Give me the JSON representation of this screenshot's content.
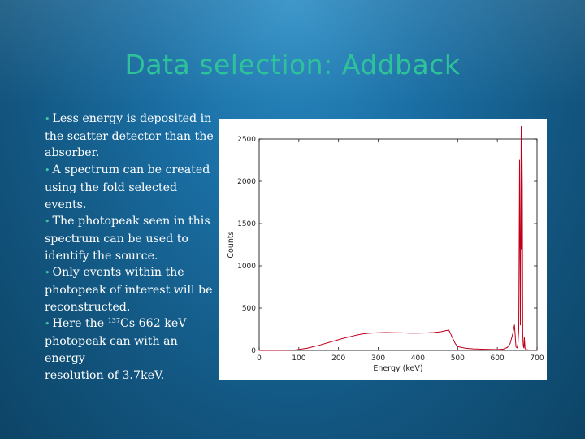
{
  "slide": {
    "title": "Data selection: Addback",
    "bullets": [
      {
        "lines": [
          "Less energy is deposited in",
          "the scatter detector than the",
          "absorber."
        ]
      },
      {
        "lines": [
          "A spectrum can be created",
          "using the fold selected events."
        ]
      },
      {
        "lines": [
          "The photopeak seen in this",
          "spectrum can be used to",
          "identify the source."
        ]
      },
      {
        "lines": [
          "Only events within the",
          "photopeak of interest will be",
          "reconstructed."
        ]
      },
      {
        "pre": "Here the ",
        "sup": "137",
        "post": "Cs 662 keV",
        "lines": [
          "photopeak can with an energy",
          "resolution of 3.7keV."
        ]
      }
    ]
  },
  "chart_data": {
    "type": "line",
    "title": "",
    "xlabel": "Energy (keV)",
    "ylabel": "Counts",
    "xlim": [
      0,
      700
    ],
    "ylim": [
      0,
      2500
    ],
    "xticks": [
      0,
      100,
      200,
      300,
      400,
      500,
      600,
      700
    ],
    "yticks": [
      0,
      500,
      1000,
      1500,
      2000,
      2500
    ],
    "series": [
      {
        "color": "#c0001a",
        "x": [
          0,
          50,
          90,
          120,
          150,
          180,
          210,
          240,
          260,
          280,
          300,
          320,
          340,
          360,
          380,
          400,
          420,
          440,
          460,
          470,
          478,
          482,
          486,
          490,
          494,
          500,
          520,
          540,
          560,
          580,
          600,
          615,
          625,
          632,
          638,
          643,
          647,
          650,
          652,
          654,
          656,
          658,
          660,
          661,
          662,
          663,
          664,
          665,
          666,
          667,
          668,
          670,
          673,
          680,
          700
        ],
        "y": [
          0,
          0,
          5,
          25,
          60,
          100,
          140,
          175,
          195,
          205,
          210,
          212,
          210,
          208,
          205,
          205,
          207,
          212,
          222,
          235,
          240,
          200,
          160,
          120,
          80,
          45,
          25,
          18,
          14,
          12,
          10,
          15,
          35,
          80,
          180,
          300,
          40,
          30,
          80,
          250,
          2250,
          300,
          2650,
          1200,
          2500,
          1900,
          200,
          80,
          40,
          30,
          150,
          20,
          10,
          5,
          3
        ]
      }
    ]
  }
}
